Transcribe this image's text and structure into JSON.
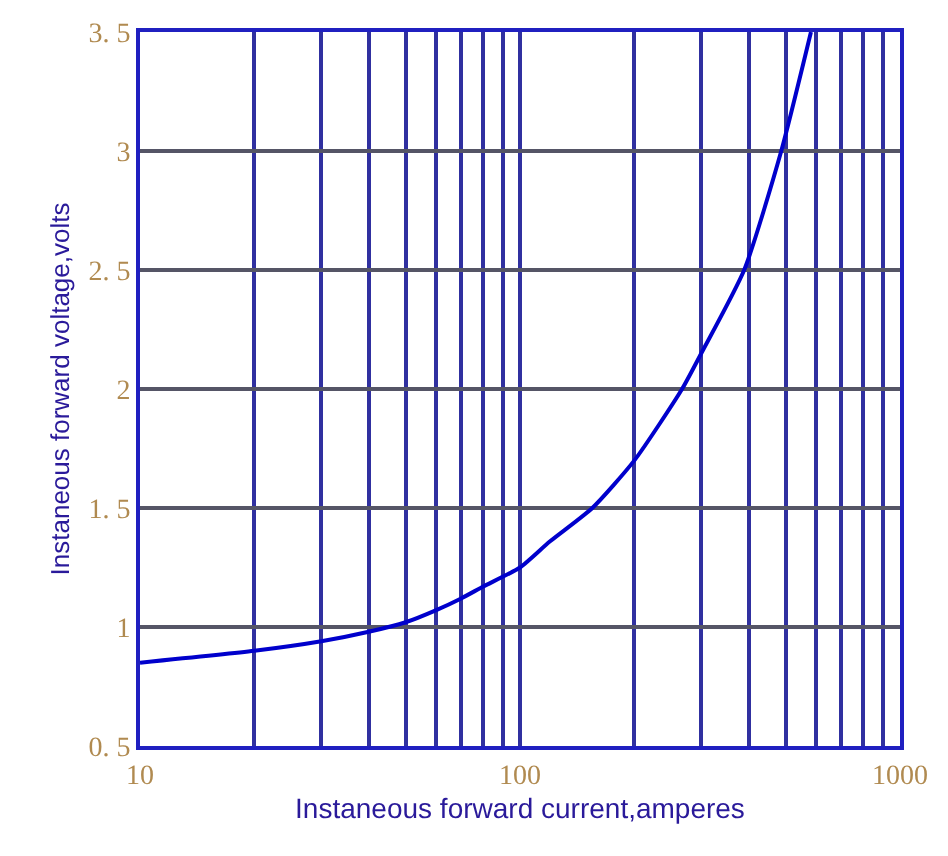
{
  "chart_data": {
    "type": "line",
    "xlabel": "Instaneous forward current,amperes",
    "ylabel": "Instaneous forward voltage,volts",
    "log": "x",
    "grid": true,
    "legend": false,
    "marker": "none",
    "line_style": "solid",
    "xlim": [
      10,
      1000
    ],
    "ylim": [
      0.5,
      3.5
    ],
    "xticks": [
      10,
      {
        "value": 20,
        "label": null
      },
      {
        "value": 30,
        "label": null
      },
      {
        "value": 40,
        "label": null
      },
      {
        "value": 50,
        "label": null
      },
      {
        "value": 60,
        "label": null
      },
      {
        "value": 70,
        "label": null
      },
      {
        "value": 80,
        "label": null
      },
      {
        "value": 90,
        "label": null
      },
      100,
      {
        "value": 200,
        "label": null
      },
      {
        "value": 300,
        "label": null
      },
      {
        "value": 400,
        "label": null
      },
      {
        "value": 500,
        "label": null
      },
      {
        "value": 600,
        "label": null
      },
      {
        "value": 700,
        "label": null
      },
      {
        "value": 800,
        "label": null
      },
      {
        "value": 900,
        "label": null
      },
      1000
    ],
    "yticks": [
      {
        "value": 0.5,
        "label": "0. 5"
      },
      1,
      {
        "value": 1.5,
        "label": "1. 5"
      },
      2,
      {
        "value": 2.5,
        "label": "2. 5"
      },
      3,
      {
        "value": 3.5,
        "label": "3. 5"
      }
    ],
    "series": [
      {
        "color": "#0000cc",
        "x": [
          10,
          20,
          30,
          40,
          50,
          60,
          70,
          80,
          100,
          120,
          155,
          200,
          267,
          300,
          389,
          487,
          583
        ],
        "values": [
          0.85,
          0.9,
          0.94,
          0.98,
          1.02,
          1.07,
          1.12,
          1.17,
          1.25,
          1.36,
          1.5,
          1.7,
          2.0,
          2.15,
          2.5,
          3.0,
          3.5
        ]
      }
    ]
  }
}
